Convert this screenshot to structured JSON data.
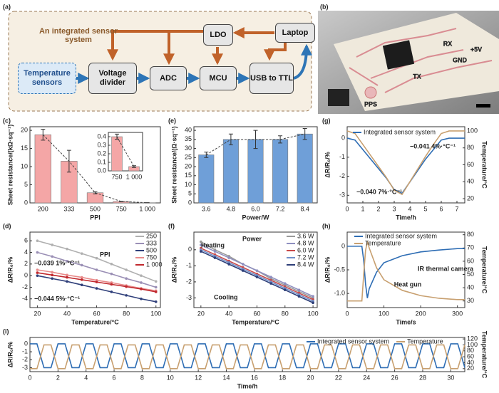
{
  "panel_labels": [
    "(a)",
    "(b)",
    "(c)",
    "(e)",
    "(g)",
    "(d)",
    "(f)",
    "(h)",
    "(i)"
  ],
  "diagram": {
    "title": "An integrated sensor system",
    "nodes": [
      "Temperature sensors",
      "Voltage divider",
      "ADC",
      "MCU",
      "LDO",
      "USB to TTL",
      "Laptop"
    ]
  },
  "photo": {
    "labels": [
      "RX",
      "+5V",
      "GND",
      "TX",
      "PPS"
    ]
  },
  "chart_data": [
    {
      "type": "bar",
      "categories": [
        "200",
        "333",
        "500",
        "750",
        "1 000"
      ],
      "values": [
        18.8,
        11.5,
        2.8,
        0.4,
        0.05
      ],
      "errors": [
        1.5,
        3,
        0.3,
        0.05,
        0.02
      ],
      "color": "#f4a6a6",
      "ylim": [
        0,
        21
      ],
      "yticks": [
        0,
        5,
        10,
        15,
        20
      ],
      "xlabel": "PPI",
      "ylabel": "Sheet resistance/(kΩ·sq⁻¹)"
    },
    {
      "type": "bar",
      "categories": [
        "750",
        "1 000"
      ],
      "values": [
        0.4,
        0.05
      ],
      "errors": [
        0.03,
        0.01
      ],
      "color": "#f4a6a6",
      "ylim": [
        0,
        0.45
      ],
      "yticks": [
        {
          "value": 0,
          "label": "0.0"
        },
        0.1,
        0.2,
        0.3,
        0.4
      ]
    },
    {
      "type": "bar",
      "categories": [
        "3.6",
        "4.8",
        "6.0",
        "7.2",
        "8.4"
      ],
      "values": [
        26.5,
        35,
        35,
        35,
        38
      ],
      "errors": [
        1.5,
        3,
        5,
        2,
        3
      ],
      "color": "#6f9fd8",
      "ylim": [
        0,
        42
      ],
      "yticks": [
        0,
        5,
        10,
        15,
        20,
        25,
        30,
        35,
        40
      ],
      "xlabel": "Power/W",
      "ylabel": "Sheet resistance/(Ω·sq⁻¹)"
    },
    {
      "type": "line",
      "x": [
        0,
        0.5,
        1,
        1.5,
        2,
        2.5,
        3,
        3.5,
        4,
        4.5,
        5,
        5.5,
        6,
        6.5,
        7,
        7.5
      ],
      "series": [
        {
          "name": "Integrated sensor system",
          "color": "#2e6db4",
          "values": [
            0,
            -0.1,
            -0.6,
            -1.1,
            -1.6,
            -2.1,
            -2.7,
            -2.9,
            -2.3,
            -1.7,
            -1.1,
            -0.6,
            -0.1,
            0,
            0,
            0
          ]
        },
        {
          "color": "#c8a070",
          "axis": "y2",
          "values": [
            100,
            97,
            84,
            71,
            58,
            45,
            30,
            25,
            40,
            55,
            70,
            84,
            97,
            100,
            100,
            100
          ]
        }
      ],
      "xlim": [
        0,
        7.5
      ],
      "xticks": [
        0,
        1,
        2,
        3,
        4,
        5,
        6,
        7
      ],
      "ylim": [
        -3.4,
        0.6
      ],
      "yticks": [
        0,
        -1,
        -2,
        -3
      ],
      "y2lim": [
        15,
        105
      ],
      "y2ticks": [
        20,
        40,
        60,
        80,
        100
      ],
      "xlabel": "Time/h",
      "ylabel": "ΔR/R₀/%",
      "y2label": "Temperature/°C",
      "annotations": [
        "−0.041 4%·°C⁻¹",
        "−0.040 7%·°C⁻¹"
      ]
    },
    {
      "type": "line",
      "markers": true,
      "x": [
        20,
        30,
        40,
        50,
        60,
        70,
        80,
        90,
        100
      ],
      "series": [
        {
          "name": "250",
          "color": "#b0b0b0",
          "values": [
            6,
            5.3,
            4.6,
            3.8,
            3,
            2,
            1,
            0,
            -1
          ]
        },
        {
          "name": "333",
          "color": "#9a8fb5",
          "values": [
            4,
            3.3,
            2.5,
            1.8,
            1,
            0.3,
            -0.5,
            -1.2,
            -2
          ]
        },
        {
          "name": "500",
          "color": "#2f3f7a",
          "values": [
            0,
            -0.5,
            -1,
            -1.6,
            -2.2,
            -2.8,
            -3.4,
            -4,
            -4.5
          ]
        },
        {
          "name": "750",
          "color": "#e88a8a",
          "values": [
            1,
            0.6,
            0.1,
            -0.3,
            -0.8,
            -1.2,
            -1.7,
            -2.2,
            -2.6
          ]
        },
        {
          "name": "1 000",
          "color": "#c0282d",
          "values": [
            0.5,
            0.1,
            -0.3,
            -0.7,
            -1.1,
            -1.5,
            -1.9,
            -2.3,
            -2.8
          ]
        }
      ],
      "xlim": [
        15,
        103
      ],
      "xticks": [
        20,
        40,
        60,
        80,
        100
      ],
      "ylim": [
        -5.5,
        7.5
      ],
      "yticks": [
        -4,
        -2,
        0,
        2,
        4,
        6
      ],
      "xlabel": "Temperature/°C",
      "ylabel": "ΔR/R₀/%",
      "annotations": [
        "−0.039 1%·°C⁻¹",
        "−0.044 5%·°C⁻¹",
        "PPI"
      ]
    },
    {
      "type": "line",
      "markers": true,
      "x": [
        20,
        30,
        40,
        50,
        60,
        70,
        80,
        90,
        100
      ],
      "series": [
        {
          "name": "3.6 W",
          "color": "#999999",
          "values": [
            0.5,
            0,
            -0.4,
            -0.9,
            -1.3,
            -1.8,
            -2.2,
            -2.6,
            -3
          ]
        },
        {
          "name": "4.8 W",
          "color": "#8e8fc0",
          "values": [
            0.3,
            -0.1,
            -0.5,
            -0.9,
            -1.3,
            -1.7,
            -2.1,
            -2.5,
            -2.9
          ]
        },
        {
          "name": "6.0 W",
          "color": "#c84a4a",
          "values": [
            0.1,
            -0.3,
            -0.7,
            -1.1,
            -1.5,
            -1.9,
            -2.3,
            -2.7,
            -3.1
          ]
        },
        {
          "name": "7.2 W",
          "color": "#6f8fc9",
          "values": [
            0,
            -0.4,
            -0.8,
            -1.2,
            -1.6,
            -2,
            -2.4,
            -2.8,
            -3.2
          ]
        },
        {
          "name": "8.4 W",
          "color": "#2d3e78",
          "values": [
            -0.1,
            -0.5,
            -0.9,
            -1.3,
            -1.7,
            -2.1,
            -2.5,
            -2.9,
            -3.3
          ]
        }
      ],
      "xlim": [
        15,
        103
      ],
      "xticks": [
        20,
        40,
        60,
        80,
        100
      ],
      "ylim": [
        -3.6,
        1.1
      ],
      "yticks": [
        0,
        -1,
        -2,
        -3
      ],
      "xlabel": "Temperature/°C",
      "ylabel": "ΔR/R₀/%",
      "annotations": [
        "Heating",
        "Cooling",
        "Power"
      ]
    },
    {
      "type": "line",
      "x": [
        0,
        20,
        40,
        45,
        50,
        55,
        60,
        80,
        100,
        150,
        200,
        250,
        300,
        320
      ],
      "series": [
        {
          "name": "Integrated sensor system",
          "color": "#2e6db4",
          "values": [
            0,
            0,
            0,
            -0.3,
            -0.8,
            -1.1,
            -0.9,
            -0.55,
            -0.35,
            -0.2,
            -0.12,
            -0.08,
            -0.05,
            -0.05
          ]
        },
        {
          "name": "Temperature",
          "color": "#c8a070",
          "axis": "y2",
          "values": [
            30,
            30,
            30,
            50,
            68,
            75,
            70,
            55,
            46,
            38,
            34,
            32,
            31,
            31
          ]
        }
      ],
      "xlim": [
        0,
        320
      ],
      "xticks": [
        0,
        100,
        200,
        300
      ],
      "ylim": [
        -1.3,
        0.3
      ],
      "yticks": [
        0,
        -0.5,
        {
          "value": -1,
          "label": "-1.0"
        }
      ],
      "y2lim": [
        25,
        82
      ],
      "y2ticks": [
        30,
        40,
        50,
        60,
        70,
        80
      ],
      "xlabel": "Time/s",
      "ylabel": "ΔR/R₀/%",
      "y2label": "Temperature/°C",
      "annotations": [
        "Heat gun",
        "IR thermal camera"
      ]
    },
    {
      "type": "line",
      "x": [
        0,
        0.5,
        1,
        1.5,
        2,
        2.5,
        3,
        3.5,
        4,
        4.5,
        5,
        5.5,
        6,
        6.5,
        7,
        7.5,
        8,
        8.5,
        9,
        9.5,
        10,
        10.5,
        11,
        11.5,
        12,
        12.5,
        13,
        13.5,
        14,
        14.5,
        15,
        15.5,
        16,
        16.5,
        17,
        17.5,
        18,
        18.5,
        19,
        19.5,
        20,
        20.5,
        21,
        21.5,
        22,
        22.5,
        23,
        23.5,
        24,
        24.5,
        25,
        25.5,
        26,
        26.5,
        27,
        27.5,
        28,
        28.5,
        29,
        29.5,
        30,
        30.5,
        31
      ],
      "series": [
        {
          "name": "Integrated sensor system",
          "color": "#2e6db4",
          "values": [
            0,
            0,
            -3,
            -3,
            0,
            0,
            -3,
            -3,
            0,
            0,
            -3,
            -3,
            0,
            0,
            -3,
            -3,
            0,
            0,
            -3,
            -3,
            0,
            0,
            -3,
            -3,
            0,
            0,
            -3,
            -3,
            0,
            0,
            -3,
            -3,
            0,
            0,
            -3,
            -3,
            0,
            0,
            -3,
            -3,
            0,
            0,
            -3,
            -3,
            0,
            0,
            -3,
            -3,
            0,
            0,
            -3,
            -3,
            0,
            0,
            -3,
            -3,
            0,
            0,
            -3,
            -3,
            0,
            0,
            -3
          ]
        },
        {
          "name": "Temperature",
          "color": "#c8a070",
          "axis": "y2",
          "values": [
            20,
            20,
            100,
            100,
            20,
            20,
            100,
            100,
            20,
            20,
            100,
            100,
            20,
            20,
            100,
            100,
            20,
            20,
            100,
            100,
            20,
            20,
            100,
            100,
            20,
            20,
            100,
            100,
            20,
            20,
            100,
            100,
            20,
            20,
            100,
            100,
            20,
            20,
            100,
            100,
            20,
            20,
            100,
            100,
            20,
            20,
            100,
            100,
            20,
            20,
            100,
            100,
            20,
            20,
            100,
            100,
            20,
            20,
            100,
            100,
            20,
            20,
            100
          ]
        }
      ],
      "xlim": [
        0,
        31
      ],
      "xticks": [
        0,
        2,
        4,
        6,
        8,
        10,
        12,
        14,
        16,
        18,
        20,
        22,
        24,
        26,
        28,
        30
      ],
      "ylim": [
        -3.5,
        0.8
      ],
      "yticks": [
        0,
        -1,
        -2,
        -3
      ],
      "y2lim": [
        10,
        125
      ],
      "y2ticks": [
        20,
        40,
        60,
        80,
        100,
        120
      ],
      "xlabel": "Time/h",
      "ylabel": "ΔR/R₀/%",
      "y2label": "Temperature/°C"
    }
  ]
}
